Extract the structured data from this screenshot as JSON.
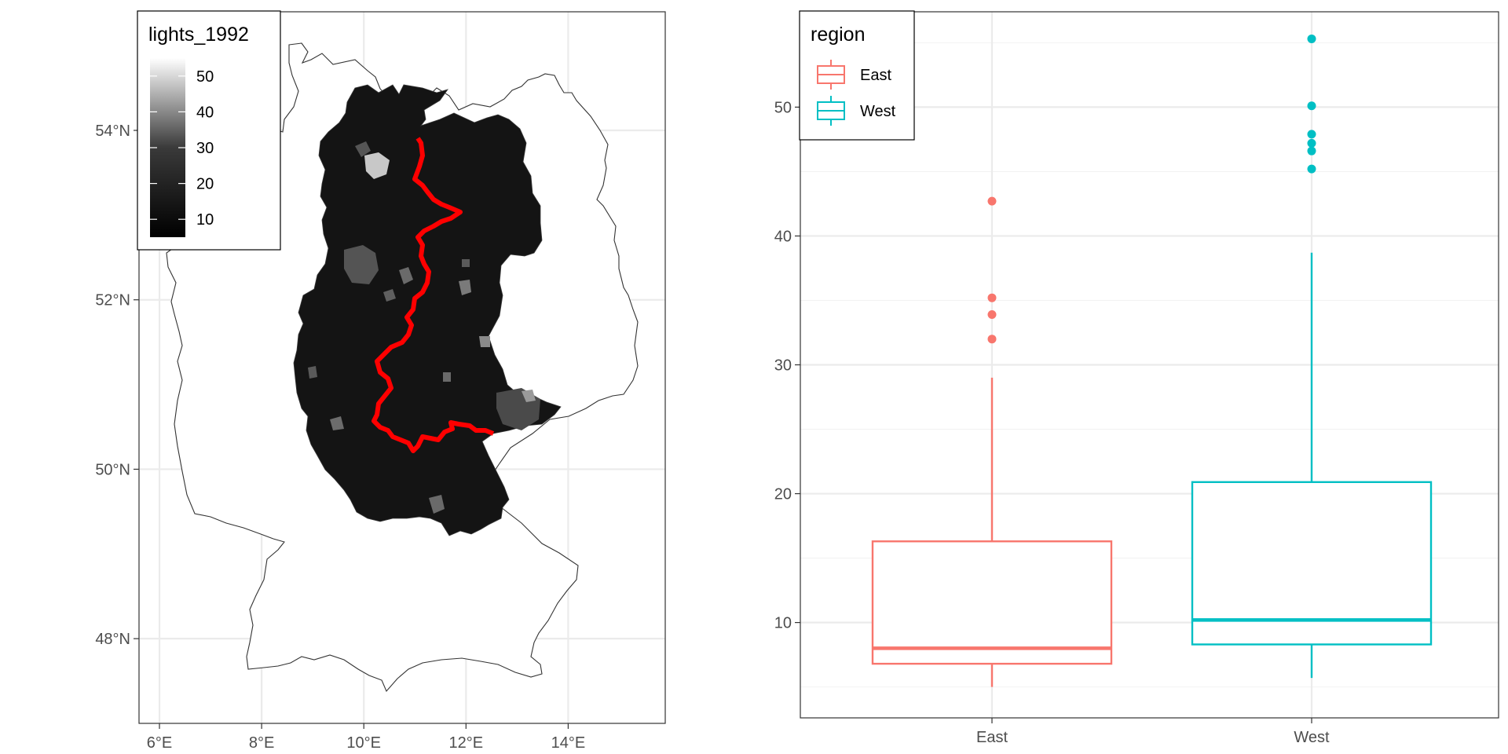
{
  "colors": {
    "east": "#F8766D",
    "west": "#00BFC4",
    "border": "#FF0000",
    "grid": "#EBEBEB",
    "grid_minor": "#F2F2F2",
    "axis_text": "#4D4D4D"
  },
  "chart_data": [
    {
      "type": "map",
      "description_kind": "choropleth",
      "x_ticks": [
        "6°E",
        "8°E",
        "10°E",
        "12°E",
        "14°E"
      ],
      "x_tick_values": [
        6,
        8,
        10,
        12,
        14
      ],
      "y_ticks": [
        "48°N",
        "50°N",
        "52°N",
        "54°N"
      ],
      "y_tick_values": [
        48,
        50,
        52,
        54
      ],
      "xlim": [
        5.6,
        15.9
      ],
      "ylim": [
        47.0,
        55.4
      ],
      "legend": {
        "title": "lights_1992",
        "labels": [
          "50",
          "40",
          "30",
          "20",
          "10"
        ],
        "values": [
          50,
          40,
          30,
          20,
          10
        ],
        "range": [
          5,
          55
        ],
        "placement": "top-left",
        "gradient": [
          "#000000",
          "#ffffff"
        ]
      },
      "grid": true
    },
    {
      "type": "boxplot",
      "categories": [
        "East",
        "West"
      ],
      "series": [
        {
          "name": "East",
          "whisker_low": 5.0,
          "q1": 6.8,
          "median": 8.0,
          "q3": 16.3,
          "whisker_high": 29.0,
          "outliers": [
            32.0,
            33.9,
            35.2,
            42.7
          ]
        },
        {
          "name": "West",
          "whisker_low": 5.7,
          "q1": 8.3,
          "median": 10.2,
          "q3": 20.9,
          "whisker_high": 38.7,
          "outliers": [
            45.2,
            46.6,
            47.2,
            47.9,
            50.1,
            55.3
          ]
        }
      ],
      "y_ticks": [
        "10",
        "20",
        "30",
        "40",
        "50"
      ],
      "y_tick_values": [
        10,
        20,
        30,
        40,
        50
      ],
      "ylim": [
        2.6,
        57.4
      ],
      "legend": {
        "title": "region",
        "labels": [
          "East",
          "West"
        ],
        "placement": "top-left"
      },
      "grid": true
    }
  ]
}
